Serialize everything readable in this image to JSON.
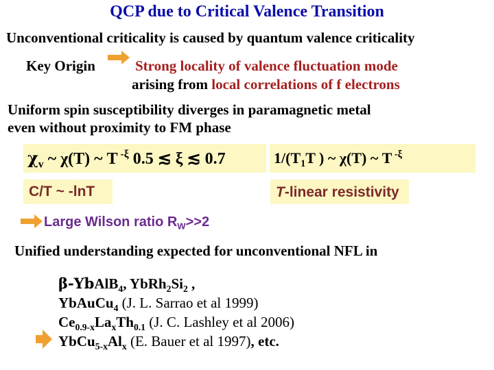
{
  "title": "QCP due to Critical Valence Transition",
  "line1": "Unconventional criticality is caused by quantum valence criticality",
  "key_origin": {
    "label": "Key Origin",
    "text1": "Strong locality of valence fluctuation mode",
    "text2_pre": "arising from ",
    "text2_hl": "local correlations of f electrons"
  },
  "uniform": {
    "line1": "Uniform spin susceptibility diverges in paramagnetic metal",
    "line2": "even without proximity to FM phase"
  },
  "formula_box1": {
    "chi": "χ",
    "chi_sub": "v",
    "mid": " ~ χ(T) ~ T",
    "exp": " -ξ",
    "range": "  0.5 ≲ ξ ≲ 0.7"
  },
  "formula_box2": {
    "part1": "1/(T",
    "sub": "1",
    "part2": "T ) ~ χ(T) ~ T",
    "exp": " -ξ"
  },
  "ct_box": "C/T ~ -lnT",
  "resistivity_box": {
    "italic": "T",
    "rest": "-linear resistivity"
  },
  "wilson": {
    "text": "Large Wilson ratio R",
    "sub": "W",
    "tail": ">>2"
  },
  "unified": "Unified understanding expected for unconventional NFL in",
  "materials": {
    "m1_pre": "β-Yb",
    "m1_a": "AlB",
    "m1_a_sub": "4",
    "m1_b": ", YbRh",
    "m1_b_sub": "2",
    "m1_c": "Si",
    "m1_c_sub": "2",
    "m1_tail": " ,",
    "m2": "YbAu",
    "m2_cu": "Cu",
    "m2_sub": "4",
    "m2_ref": "  (J. L. Sarrao et al 1999)",
    "m3": "Ce",
    "m3_sub1": "0.9-x",
    "m3_la": "La",
    "m3_sub2": "x",
    "m3_th": "Th",
    "m3_sub3": "0.1",
    "m3_ref": " (J. C. Lashley et al 2006)",
    "m4": "YbCu",
    "m4_sub1": "5-x",
    "m4_al": "Al",
    "m4_sub2": "x",
    "m4_ref": " (E. Bauer et al 1997)",
    "m4_tail": ", etc."
  },
  "colors": {
    "title": "#0b0ea8",
    "accent_red": "#a51f1f",
    "purple": "#6a2c8c",
    "box": "#fdf7c3",
    "arrow": "#f0a030"
  }
}
